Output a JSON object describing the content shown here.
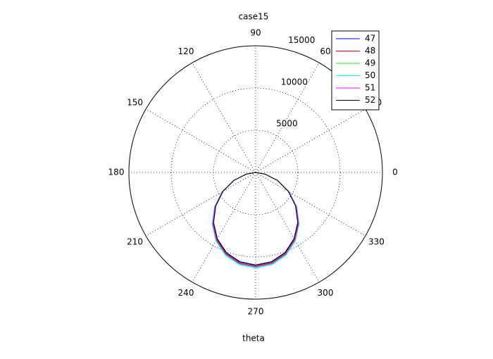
{
  "chart_data": {
    "type": "polar",
    "title": "case15",
    "xlabel": "theta",
    "theta": [
      180,
      190,
      200,
      210,
      220,
      230,
      240,
      250,
      260,
      270,
      280,
      290,
      300,
      310,
      320,
      330,
      340,
      350,
      360
    ],
    "series": [
      {
        "name": "47",
        "color": "#0000ff",
        "values": [
          0,
          1130,
          2730,
          4470,
          6190,
          7780,
          9120,
          10150,
          10780,
          11000,
          10780,
          10150,
          9120,
          7780,
          6190,
          4470,
          2730,
          1130,
          0
        ]
      },
      {
        "name": "48",
        "color": "#ff0000",
        "values": [
          0,
          1140,
          2760,
          4510,
          6250,
          7860,
          9210,
          10250,
          10890,
          11110,
          10890,
          10250,
          9210,
          7860,
          6250,
          4510,
          2760,
          1140,
          0
        ]
      },
      {
        "name": "49",
        "color": "#00ff00",
        "values": [
          0,
          1150,
          2780,
          4560,
          6310,
          7940,
          9300,
          10350,
          11000,
          11220,
          11000,
          10350,
          9300,
          7940,
          6310,
          4560,
          2780,
          1150,
          0
        ]
      },
      {
        "name": "50",
        "color": "#00ffff",
        "values": [
          0,
          1160,
          2810,
          4600,
          6380,
          8010,
          9390,
          10450,
          11100,
          11330,
          11100,
          10450,
          9390,
          8010,
          6380,
          4600,
          2810,
          1160,
          0
        ]
      },
      {
        "name": "51",
        "color": "#ff00ff",
        "values": [
          0,
          1150,
          2770,
          4540,
          6280,
          7900,
          9260,
          10300,
          10940,
          11170,
          10940,
          10300,
          9260,
          7900,
          6280,
          4540,
          2770,
          1150,
          0
        ]
      },
      {
        "name": "52",
        "color": "#000000",
        "values": [
          0,
          1120,
          2720,
          4450,
          6160,
          7740,
          9070,
          10100,
          10730,
          10950,
          10730,
          10100,
          9070,
          7740,
          6160,
          4450,
          2720,
          1120,
          0
        ]
      }
    ],
    "rlim": [
      0,
      15000
    ],
    "rticks": [
      5000,
      10000,
      15000
    ],
    "thetaticks": [
      0,
      30,
      60,
      90,
      120,
      150,
      180,
      210,
      240,
      270,
      300,
      330
    ],
    "legend": "upper-right"
  }
}
